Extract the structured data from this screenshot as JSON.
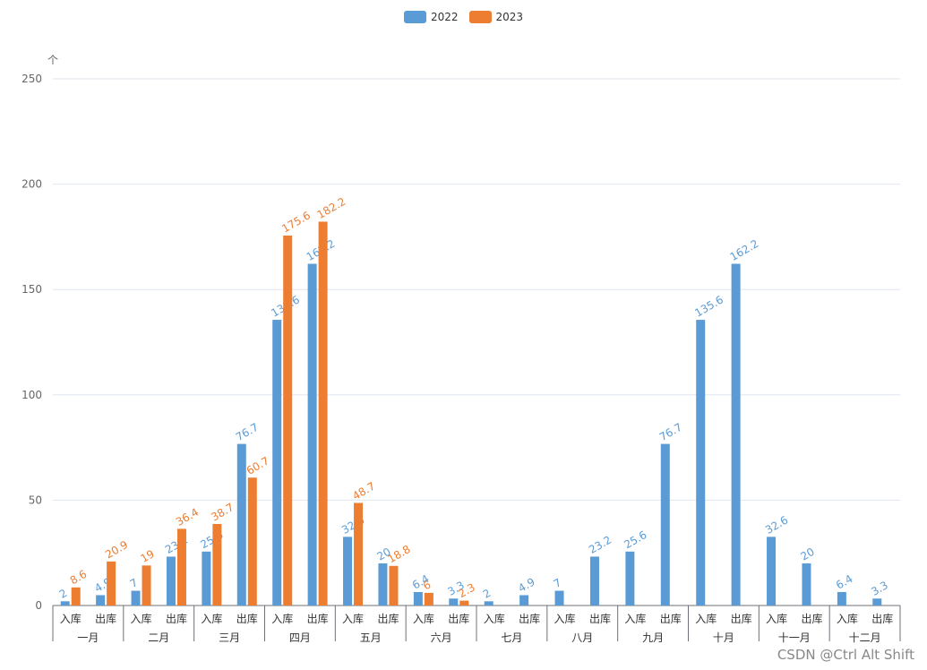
{
  "legend": {
    "items": [
      {
        "label": "2022",
        "color": "#5b9bd5"
      },
      {
        "label": "2023",
        "color": "#ed7d31"
      }
    ]
  },
  "unit_label": "个",
  "watermark": "CSDN @Ctrl Alt Shift",
  "chart_data": {
    "type": "bar",
    "y_ticks": [
      "0",
      "50",
      "100",
      "150",
      "200",
      "250"
    ],
    "ylim": [
      0,
      250
    ],
    "grid": true,
    "legend_position": "top-center",
    "sub_categories": [
      "入库",
      "出库"
    ],
    "groups": [
      "一月",
      "二月",
      "三月",
      "四月",
      "五月",
      "六月",
      "七月",
      "八月",
      "九月",
      "十月",
      "十一月",
      "十二月"
    ],
    "series": [
      {
        "name": "2022",
        "color": "#5b9bd5",
        "values": [
          2,
          4.9,
          7,
          23.2,
          25.6,
          76.7,
          135.6,
          162.2,
          32.6,
          20,
          6.4,
          3.3,
          2,
          4.9,
          7,
          23.2,
          25.6,
          76.7,
          135.6,
          162.2,
          32.6,
          20,
          6.4,
          3.3
        ],
        "labels": [
          "2",
          "4.9",
          "7",
          "23.2",
          "25.6",
          "76.7",
          "135.6",
          "162.2",
          "32.6",
          "20",
          "6.4",
          "3.3",
          "2",
          "4.9",
          "7",
          "23.2",
          "25.6",
          "76.7",
          "135.6",
          "162.2",
          "32.6",
          "20",
          "6.4",
          "3.3"
        ]
      },
      {
        "name": "2023",
        "color": "#ed7d31",
        "values": [
          8.6,
          20.9,
          19,
          36.4,
          38.7,
          60.7,
          175.6,
          182.2,
          48.7,
          18.8,
          6,
          2.3,
          null,
          null,
          null,
          null,
          null,
          null,
          null,
          null,
          null,
          null,
          null,
          null
        ],
        "labels": [
          "8.6",
          "20.9",
          "19",
          "36.4",
          "38.7",
          "60.7",
          "175.6",
          "182.2",
          "48.7",
          "18.8",
          "6",
          "2.3",
          null,
          null,
          null,
          null,
          null,
          null,
          null,
          null,
          null,
          null,
          null,
          null
        ]
      }
    ]
  }
}
